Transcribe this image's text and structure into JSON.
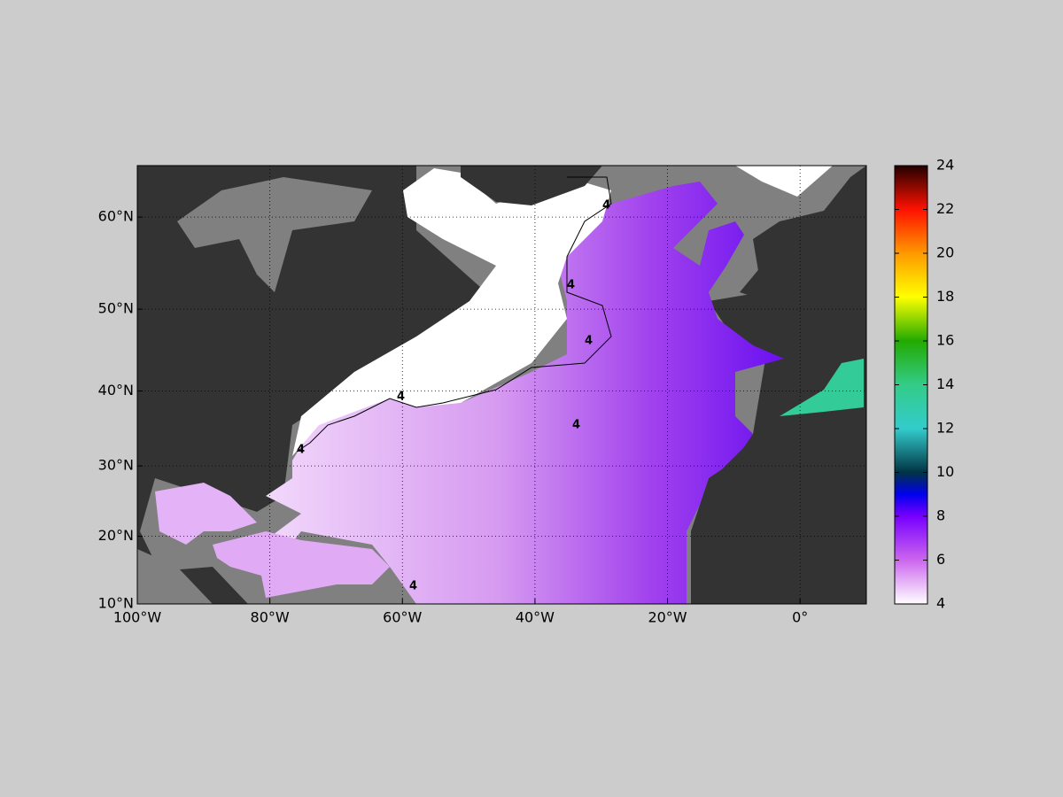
{
  "map": {
    "xlim": [
      -100,
      10
    ],
    "ylim": [
      10,
      65
    ],
    "xticks": [
      {
        "value": -100,
        "label": "100°W"
      },
      {
        "value": -80,
        "label": "80°W"
      },
      {
        "value": -60,
        "label": "60°W"
      },
      {
        "value": -40,
        "label": "40°W"
      },
      {
        "value": -20,
        "label": "20°W"
      },
      {
        "value": 0,
        "label": "0°"
      }
    ],
    "yticks": [
      {
        "value": 10,
        "label": "10°N"
      },
      {
        "value": 20,
        "label": "20°N"
      },
      {
        "value": 30,
        "label": "30°N"
      },
      {
        "value": 40,
        "label": "40°N"
      },
      {
        "value": 50,
        "label": "50°N"
      },
      {
        "value": 60,
        "label": "60°N"
      }
    ],
    "grid": true,
    "contour_level": 4,
    "colorbar": {
      "lim": [
        4,
        24
      ],
      "ticks": [
        4,
        6,
        8,
        10,
        12,
        14,
        16,
        18,
        20,
        22,
        24
      ]
    }
  }
}
